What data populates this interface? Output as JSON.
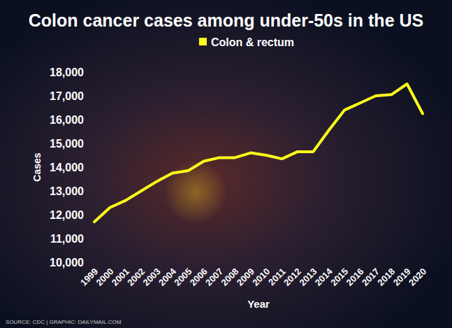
{
  "chart_data": {
    "type": "line",
    "title": "Colon cancer cases among under-50s in the US",
    "x_label": "Year",
    "y_label": "Cases",
    "source": "SOURCE: CDC | GRAPHIC: DAILYMAIL.COM",
    "categories": [
      "1999",
      "2000",
      "2001",
      "2002",
      "2003",
      "2004",
      "2005",
      "2006",
      "2007",
      "2008",
      "2009",
      "2010",
      "2011",
      "2012",
      "2013",
      "2014",
      "2015",
      "2016",
      "2017",
      "2018",
      "2019",
      "2020"
    ],
    "series": [
      {
        "name": "Colon & rectum",
        "color": "#ffff1a",
        "values": [
          11700,
          12300,
          12600,
          13000,
          13400,
          13750,
          13850,
          14250,
          14400,
          14400,
          14600,
          14500,
          14350,
          14650,
          14650,
          15550,
          16400,
          16700,
          17000,
          17050,
          17500,
          16250
        ]
      }
    ],
    "ylim": [
      10000,
      18000
    ],
    "yticks": [
      {
        "value": 10000,
        "label": "10,000"
      },
      {
        "value": 11000,
        "label": "11,000"
      },
      {
        "value": 12000,
        "label": "12,000"
      },
      {
        "value": 13000,
        "label": "13,000"
      },
      {
        "value": 14000,
        "label": "14,000"
      },
      {
        "value": 15000,
        "label": "15,000"
      },
      {
        "value": 16000,
        "label": "16,000"
      },
      {
        "value": 17000,
        "label": "17,000"
      },
      {
        "value": 18000,
        "label": "18,000"
      }
    ],
    "grid": false,
    "legend": "top"
  }
}
